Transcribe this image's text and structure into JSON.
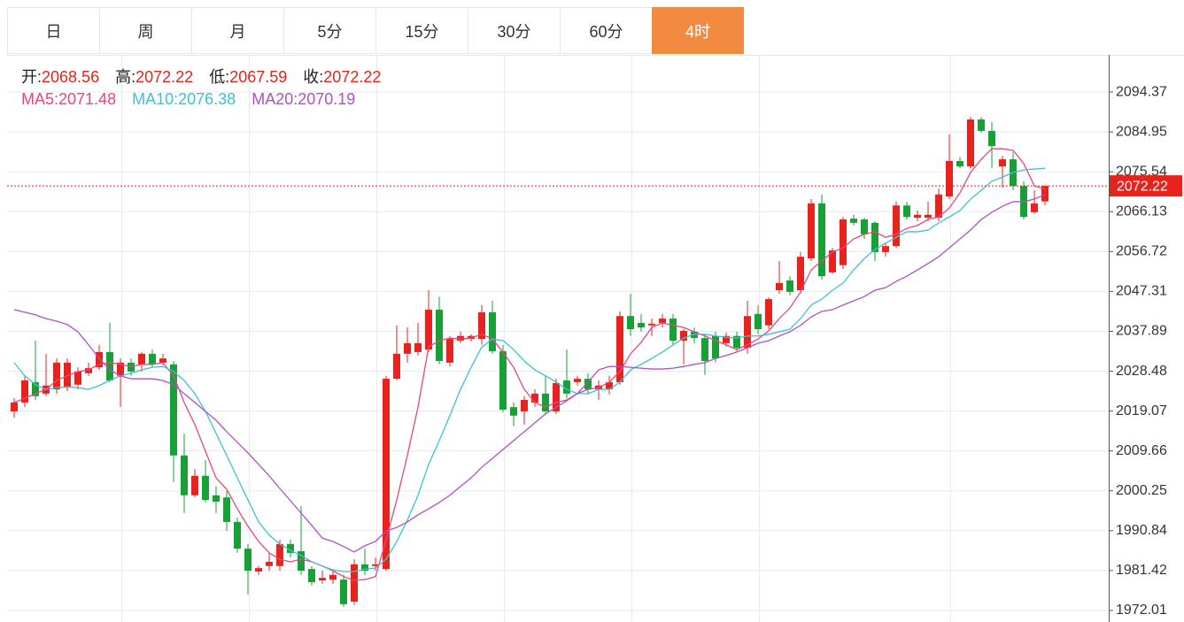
{
  "tabs": {
    "items": [
      "日",
      "周",
      "月",
      "5分",
      "15分",
      "30分",
      "60分",
      "4时"
    ],
    "active": 7
  },
  "chart_data": {
    "type": "candlestick",
    "ohlc_labels": [
      "开:",
      "高:",
      "低:",
      "收:"
    ],
    "ylim": [
      1969.29,
      2103.15
    ],
    "yticks": [
      1972.01,
      1981.42,
      1990.84,
      2000.25,
      2009.66,
      2019.07,
      2028.48,
      2037.89,
      2047.31,
      2056.72,
      2066.13,
      2075.54,
      2084.95,
      2094.37
    ],
    "grid": true,
    "up_color": "#e8221c",
    "down_color": "#17a035",
    "last_price_color": "#e8221c",
    "open": [
      2019.0,
      2021.1,
      2025.9,
      2023.2,
      2024.2,
      2024.6,
      2025.3,
      2028.0,
      2029.4,
      2033.0,
      2027.4,
      2030.5,
      2030.1,
      2032.6,
      2030.5,
      2030.1,
      2008.6,
      1999.2,
      2003.8,
      1999.2,
      1998.7,
      1992.9,
      1986.6,
      1981.2,
      1982.5,
      1982.5,
      1987.7,
      1986.0,
      1981.8,
      1979.1,
      1979.3,
      1979.3,
      1974.1,
      1982.9,
      1982.5,
      1981.8,
      2026.7,
      2032.6,
      2033.0,
      2033.6,
      2043.0,
      2030.5,
      2035.7,
      2036.1,
      2036.1,
      2042.4,
      2033.2,
      2020.0,
      2019.0,
      2021.1,
      2023.2,
      2019.0,
      2026.3,
      2025.9,
      2026.7,
      2024.2,
      2024.2,
      2025.9,
      2041.5,
      2039.9,
      2039.3,
      2039.9,
      2040.9,
      2035.7,
      2037.8,
      2036.3,
      2036.8,
      2035.1,
      2036.8,
      2034.0,
      2042.0,
      2039.3,
      2047.6,
      2049.9,
      2047.6,
      2055.1,
      2068.1,
      2051.8,
      2053.5,
      2064.5,
      2064.3,
      2063.5,
      2056.6,
      2058.0,
      2067.6,
      2064.7,
      2064.7,
      2064.7,
      2069.7,
      2078.1,
      2076.8,
      2087.9,
      2085.2,
      2076.8,
      2078.5,
      2072.2,
      2066.0,
      2068.56
    ],
    "high": [
      2022.1,
      2027.4,
      2035.7,
      2032.6,
      2031.5,
      2031.5,
      2029.4,
      2030.5,
      2034.7,
      2039.9,
      2031.5,
      2031.5,
      2033.0,
      2033.6,
      2032.6,
      2030.9,
      2013.8,
      2005.4,
      2007.5,
      2001.3,
      2000.2,
      1993.9,
      1987.7,
      1982.5,
      1985.6,
      1988.7,
      1988.7,
      1996.7,
      1982.5,
      1981.4,
      1981.4,
      1980.4,
      1984.1,
      1986.6,
      1984.5,
      2027.4,
      2039.3,
      2038.8,
      2039.9,
      2047.6,
      2046.1,
      2036.8,
      2037.8,
      2037.2,
      2044.1,
      2045.1,
      2034.7,
      2021.1,
      2022.6,
      2024.2,
      2027.4,
      2026.7,
      2033.6,
      2027.4,
      2028.0,
      2026.3,
      2027.4,
      2042.6,
      2046.8,
      2042.0,
      2040.9,
      2042.0,
      2042.0,
      2038.4,
      2038.8,
      2037.2,
      2037.8,
      2037.6,
      2037.8,
      2045.1,
      2044.1,
      2045.9,
      2054.5,
      2050.9,
      2056.6,
      2069.1,
      2070.2,
      2057.6,
      2064.9,
      2065.4,
      2064.7,
      2063.9,
      2058.7,
      2068.5,
      2068.5,
      2066.4,
      2068.5,
      2071.6,
      2084.4,
      2079.1,
      2088.5,
      2088.5,
      2087.3,
      2079.3,
      2080.2,
      2073.3,
      2071.2,
      2072.22
    ],
    "low": [
      2017.5,
      2020.0,
      2021.7,
      2022.6,
      2023.2,
      2023.8,
      2024.2,
      2027.4,
      2028.8,
      2025.9,
      2020.0,
      2027.4,
      2028.4,
      2029.4,
      2029.9,
      2002.3,
      1995.0,
      1998.7,
      1997.5,
      1995.0,
      1990.8,
      1985.6,
      1975.8,
      1980.4,
      1981.4,
      1981.4,
      1984.5,
      1980.4,
      1977.9,
      1978.3,
      1978.3,
      1972.9,
      1973.3,
      1980.4,
      1981.4,
      1981.4,
      2026.3,
      2030.5,
      2032.2,
      2033.0,
      2030.1,
      2029.6,
      2035.1,
      2035.5,
      2034.7,
      2032.6,
      2018.8,
      2015.5,
      2015.9,
      2020.0,
      2018.4,
      2018.4,
      2022.1,
      2025.1,
      2023.0,
      2021.7,
      2023.0,
      2025.3,
      2036.8,
      2037.8,
      2036.8,
      2038.8,
      2034.7,
      2030.1,
      2035.1,
      2027.6,
      2030.5,
      2034.2,
      2033.2,
      2032.6,
      2037.2,
      2038.4,
      2046.8,
      2046.4,
      2046.8,
      2054.5,
      2050.1,
      2051.4,
      2052.6,
      2062.9,
      2059.7,
      2054.5,
      2055.5,
      2057.6,
      2064.3,
      2063.9,
      2063.9,
      2063.9,
      2069.1,
      2076.4,
      2076.4,
      2084.8,
      2076.4,
      2071.8,
      2071.2,
      2064.3,
      2065.6,
      2067.59
    ],
    "close": [
      2021.1,
      2026.3,
      2022.6,
      2025.1,
      2030.5,
      2030.5,
      2028.4,
      2029.2,
      2033.0,
      2026.3,
      2030.5,
      2028.4,
      2032.6,
      2030.1,
      2031.5,
      2008.6,
      1999.2,
      2003.8,
      1998.1,
      1997.7,
      1992.9,
      1986.6,
      1981.4,
      1982.0,
      1983.5,
      1987.7,
      1985.6,
      1981.4,
      1978.7,
      1979.7,
      1980.4,
      1973.5,
      1982.9,
      1981.4,
      1982.9,
      2026.7,
      2032.6,
      2035.1,
      2035.1,
      2043.0,
      2030.9,
      2036.1,
      2036.8,
      2036.8,
      2042.4,
      2033.2,
      2019.4,
      2018.0,
      2021.7,
      2023.2,
      2019.0,
      2025.7,
      2023.2,
      2026.7,
      2024.2,
      2025.1,
      2025.9,
      2041.5,
      2038.4,
      2038.8,
      2039.7,
      2040.9,
      2035.7,
      2038.0,
      2036.3,
      2030.9,
      2031.5,
      2036.8,
      2034.0,
      2041.5,
      2038.4,
      2045.5,
      2049.3,
      2047.2,
      2055.5,
      2068.1,
      2050.9,
      2057.0,
      2064.3,
      2063.5,
      2060.8,
      2056.6,
      2058.0,
      2067.6,
      2064.9,
      2065.4,
      2065.4,
      2070.2,
      2078.1,
      2076.8,
      2087.9,
      2085.2,
      2081.6,
      2078.5,
      2072.2,
      2064.9,
      2068.1,
      2072.22
    ],
    "series": [
      {
        "name": "MA5:",
        "color": "#e8467c",
        "values": [
          2021.1,
          2022.1,
          2023.2,
          2024.2,
          2026.3,
          2027.4,
          2028.4,
          2028.8,
          2030.1,
          2030.5,
          2030.1,
          2029.6,
          2030.1,
          2030.1,
          2030.5,
          2027.4,
          2021.1,
          2015.9,
          2009.6,
          2003.3,
          2000.6,
          1996.0,
          1991.9,
          1988.3,
          1985.6,
          1984.1,
          1983.5,
          1984.1,
          1983.5,
          1982.5,
          1981.4,
          1980.0,
          1979.1,
          1979.3,
          1980.0,
          1988.7,
          1998.1,
          2008.6,
          2020.0,
          2034.2,
          2035.7,
          2036.3,
          2036.1,
          2036.3,
          2037.2,
          2036.1,
          2033.0,
          2029.4,
          2024.2,
          2021.1,
          2020.0,
          2021.1,
          2021.7,
          2023.2,
          2024.2,
          2024.6,
          2025.9,
          2028.4,
          2032.6,
          2035.3,
          2038.8,
          2039.9,
          2039.3,
          2038.8,
          2037.8,
          2036.8,
          2035.7,
          2034.7,
          2033.6,
          2034.7,
          2036.1,
          2038.0,
          2040.9,
          2043.4,
          2047.2,
          2052.4,
          2054.5,
          2056.6,
          2057.6,
          2059.7,
          2060.8,
          2061.4,
          2060.1,
          2060.8,
          2062.2,
          2062.9,
          2064.3,
          2064.9,
          2067.0,
          2070.6,
          2075.4,
          2078.5,
          2081.0,
          2081.0,
          2080.6,
          2077.5,
          2072.2,
          2071.48
        ]
      },
      {
        "name": "MA10:",
        "color": "#3ec1d3",
        "values": [
          2030.5,
          2027.4,
          2025.3,
          2024.2,
          2024.6,
          2024.8,
          2024.6,
          2024.2,
          2025.1,
          2026.3,
          2027.4,
          2028.0,
          2028.8,
          2029.4,
          2029.6,
          2028.4,
          2026.3,
          2023.2,
          2019.0,
          2013.8,
          2008.6,
          2003.3,
          1998.1,
          1992.9,
          1989.8,
          1987.7,
          1986.2,
          1985.0,
          1983.5,
          1982.5,
          1981.6,
          1981.2,
          1981.2,
          1981.8,
          1982.0,
          1984.1,
          1988.3,
          1993.3,
          1999.2,
          2006.5,
          2012.1,
          2018.0,
          2024.2,
          2029.4,
          2034.2,
          2036.1,
          2035.7,
          2033.6,
          2030.9,
          2028.8,
          2027.4,
          2025.9,
          2024.2,
          2023.2,
          2023.2,
          2024.2,
          2024.2,
          2025.9,
          2028.8,
          2030.1,
          2031.5,
          2033.0,
          2034.7,
          2036.3,
          2037.2,
          2037.2,
          2036.8,
          2036.5,
          2036.3,
          2036.8,
          2036.8,
          2037.2,
          2037.8,
          2038.4,
          2040.9,
          2044.1,
          2045.5,
          2047.6,
          2049.3,
          2052.4,
          2055.1,
          2057.2,
          2058.7,
          2060.1,
          2061.4,
          2061.4,
          2061.8,
          2063.5,
          2064.9,
          2066.4,
          2069.1,
          2071.2,
          2073.3,
          2074.3,
          2075.4,
          2076.0,
          2076.2,
          2076.38
        ]
      },
      {
        "name": "MA20:",
        "color": "#b04fc6",
        "values": [
          2043.0,
          2042.4,
          2041.8,
          2040.9,
          2040.3,
          2039.5,
          2037.8,
          2034.7,
          2031.5,
          2028.8,
          2027.4,
          2026.7,
          2026.7,
          2026.7,
          2026.3,
          2025.3,
          2023.2,
          2021.1,
          2019.0,
          2016.9,
          2014.2,
          2011.7,
          2009.2,
          2006.5,
          2003.8,
          2000.8,
          1997.9,
          1995.0,
          1992.1,
          1989.1,
          1988.3,
          1987.1,
          1985.8,
          1987.3,
          1988.3,
          1990.8,
          1991.6,
          1992.9,
          1994.6,
          1996.0,
          1997.5,
          1999.2,
          2001.3,
          2003.3,
          2005.8,
          2007.9,
          2010.0,
          2012.1,
          2014.2,
          2016.3,
          2018.4,
          2020.0,
          2021.5,
          2023.2,
          2025.9,
          2028.8,
          2029.6,
          2029.6,
          2029.4,
          2029.2,
          2029.0,
          2029.0,
          2029.2,
          2029.6,
          2030.1,
          2030.5,
          2031.5,
          2032.2,
          2033.0,
          2034.0,
          2035.1,
          2035.7,
          2036.8,
          2037.8,
          2039.3,
          2041.3,
          2042.6,
          2043.0,
          2044.1,
          2045.1,
          2046.1,
          2047.6,
          2048.2,
          2049.7,
          2050.9,
          2052.4,
          2053.9,
          2055.5,
          2057.6,
          2059.7,
          2061.8,
          2064.3,
          2066.0,
          2067.4,
          2068.5,
          2068.5,
          2069.1,
          2070.19
        ]
      }
    ]
  }
}
